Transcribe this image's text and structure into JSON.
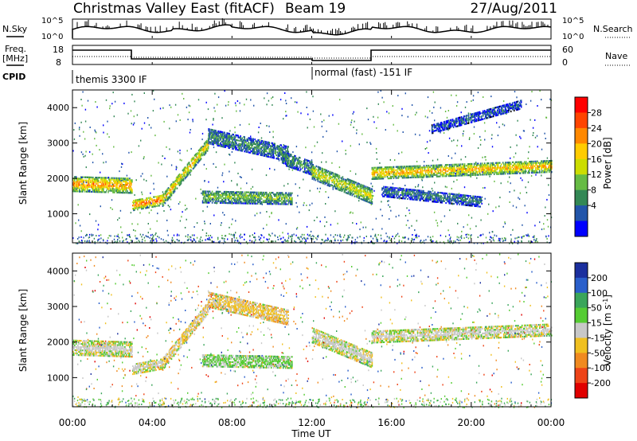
{
  "header": {
    "title": "Christmas Valley East (fitACF)",
    "beam": "Beam 19",
    "date": "27/Aug/2011"
  },
  "top_panels": {
    "nsky_label": "N.Sky",
    "nsky_ticks": [
      "10^5",
      "10^0"
    ],
    "nsearch_label": "N.Search",
    "nsearch_ticks": [
      "10^5",
      "10^0"
    ],
    "freq_label_1": "Freq.",
    "freq_label_2": "[MHz]",
    "freq_ticks": [
      "18",
      "8"
    ],
    "nave_label": "Nave",
    "nave_ticks": [
      "60",
      "0"
    ],
    "cpid_label": "CPID",
    "cpid_segments": [
      {
        "label": "themis 3300 IF",
        "start_hour": 0,
        "end_hour": 12
      },
      {
        "label": "normal (fast) -151 IF",
        "start_hour": 12,
        "end_hour": 24
      }
    ]
  },
  "colorbars": {
    "power": {
      "label": "Power [dB]",
      "ticks": [
        "28",
        "24",
        "20",
        "16",
        "12",
        "8",
        "4"
      ],
      "colors": [
        "#ff0000",
        "#ff4400",
        "#ff8800",
        "#ffcc00",
        "#ccdd00",
        "#66bb44",
        "#338855",
        "#2255aa",
        "#0000ff"
      ]
    },
    "velocity": {
      "label": "Velocity [m s",
      "label_sup": "-1",
      "label_end": "]",
      "ticks": [
        "200",
        "100",
        "50",
        "15",
        "-15",
        "-50",
        "-100",
        "-200"
      ],
      "colors": [
        "#1b2f9e",
        "#2a5fcb",
        "#3aa55a",
        "#55cc33",
        "#c8c8c8",
        "#f0c020",
        "#f08a20",
        "#ee4418",
        "#e00000"
      ]
    }
  },
  "chart_data": [
    {
      "type": "heatmap",
      "title": "Power",
      "xlabel": "",
      "ylabel": "Slant Range [km]",
      "x_ticks": [
        "00:00",
        "04:00",
        "08:00",
        "12:00",
        "16:00",
        "20:00",
        "00:00"
      ],
      "y_ticks": [
        "4000",
        "3000",
        "2000",
        "1000"
      ],
      "xlim_hours": [
        0,
        24
      ],
      "ylim_km": [
        180,
        4500
      ],
      "colorbar": "Power [dB]",
      "clim_db": [
        0,
        32
      ],
      "echo_bands": [
        {
          "start_hour": 0.0,
          "end_hour": 3.0,
          "center_km": [
            1850,
            1800
          ],
          "width_km": 420,
          "power_db": 24
        },
        {
          "start_hour": 3.0,
          "end_hour": 4.5,
          "center_km": [
            1250,
            1400
          ],
          "width_km": 300,
          "power_db": 26
        },
        {
          "start_hour": 4.5,
          "end_hour": 6.8,
          "center_km": [
            1400,
            3000
          ],
          "width_km": 360,
          "power_db": 20
        },
        {
          "start_hour": 6.8,
          "end_hour": 10.8,
          "center_km": [
            3200,
            2700
          ],
          "width_km": 420,
          "power_db": 10
        },
        {
          "start_hour": 6.5,
          "end_hour": 11.0,
          "center_km": [
            1500,
            1450
          ],
          "width_km": 360,
          "power_db": 14
        },
        {
          "start_hour": 10.5,
          "end_hour": 12.0,
          "center_km": [
            2600,
            2300
          ],
          "width_km": 400,
          "power_db": 10
        },
        {
          "start_hour": 12.0,
          "end_hour": 15.0,
          "center_km": [
            2200,
            1500
          ],
          "width_km": 420,
          "power_db": 18
        },
        {
          "start_hour": 15.0,
          "end_hour": 24.0,
          "center_km": [
            2150,
            2350
          ],
          "width_km": 330,
          "power_db": 22
        },
        {
          "start_hour": 15.5,
          "end_hour": 20.5,
          "center_km": [
            1650,
            1350
          ],
          "width_km": 300,
          "power_db": 8
        },
        {
          "start_hour": 18.0,
          "end_hour": 22.5,
          "center_km": [
            3400,
            4100
          ],
          "width_km": 240,
          "power_db": 6
        }
      ]
    },
    {
      "type": "heatmap",
      "title": "Velocity",
      "xlabel": "Time UT",
      "ylabel": "Slant Range [km]",
      "x_ticks": [
        "00:00",
        "04:00",
        "08:00",
        "12:00",
        "16:00",
        "20:00",
        "00:00"
      ],
      "y_ticks": [
        "4000",
        "3000",
        "2000",
        "1000"
      ],
      "xlim_hours": [
        0,
        24
      ],
      "ylim_km": [
        180,
        4500
      ],
      "colorbar": "Velocity [m s^-1]",
      "clim_ms": [
        -250,
        250
      ],
      "echo_bands": [
        {
          "start_hour": 0.0,
          "end_hour": 3.0,
          "center_km": [
            1850,
            1800
          ],
          "width_km": 420,
          "velocity_ms": 0
        },
        {
          "start_hour": 3.0,
          "end_hour": 4.5,
          "center_km": [
            1250,
            1400
          ],
          "width_km": 300,
          "velocity_ms": -5
        },
        {
          "start_hour": 4.5,
          "end_hour": 6.8,
          "center_km": [
            1400,
            3000
          ],
          "width_km": 360,
          "velocity_ms": -30
        },
        {
          "start_hour": 6.8,
          "end_hour": 10.8,
          "center_km": [
            3200,
            2700
          ],
          "width_km": 420,
          "velocity_ms": -40
        },
        {
          "start_hour": 6.5,
          "end_hour": 11.0,
          "center_km": [
            1500,
            1450
          ],
          "width_km": 360,
          "velocity_ms": 40
        },
        {
          "start_hour": 12.0,
          "end_hour": 15.0,
          "center_km": [
            2200,
            1500
          ],
          "width_km": 420,
          "velocity_ms": 0
        },
        {
          "start_hour": 15.0,
          "end_hour": 24.0,
          "center_km": [
            2150,
            2350
          ],
          "width_km": 330,
          "velocity_ms": 0
        }
      ]
    }
  ]
}
